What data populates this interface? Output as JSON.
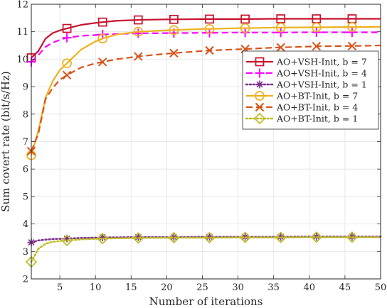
{
  "chart_data": {
    "type": "line",
    "xlabel": "Number of iterations",
    "ylabel": "Sum covert rate (bit/s/Hz)",
    "xlim": [
      1,
      50
    ],
    "ylim": [
      2,
      12
    ],
    "xticks": [
      5,
      10,
      15,
      20,
      25,
      30,
      35,
      40,
      45,
      50
    ],
    "yticks": [
      2,
      3,
      4,
      5,
      6,
      7,
      8,
      9,
      10,
      11,
      12
    ],
    "grid": true,
    "legend_position": "right, slightly above center",
    "x": [
      1,
      2,
      3,
      4,
      5,
      6,
      8,
      10,
      11,
      13,
      16,
      20,
      21,
      25,
      26,
      30,
      31,
      35,
      36,
      40,
      41,
      45,
      46,
      50
    ],
    "series": [
      {
        "name": "AO+VSH-Init, b = 7",
        "color": "#c8102e",
        "dash": "solid",
        "marker": "square",
        "values": [
          10.05,
          10.3,
          10.75,
          10.95,
          11.05,
          11.12,
          11.25,
          11.32,
          11.35,
          11.4,
          11.43,
          11.45,
          11.45,
          11.46,
          11.46,
          11.46,
          11.46,
          11.47,
          11.47,
          11.47,
          11.47,
          11.47,
          11.47,
          11.47
        ]
      },
      {
        "name": "AO+VSH-Init, b = 4",
        "color": "#ff00ff",
        "dash": "dashed",
        "marker": "plus",
        "values": [
          9.9,
          10.15,
          10.45,
          10.6,
          10.7,
          10.78,
          10.85,
          10.88,
          10.9,
          10.92,
          10.94,
          10.95,
          10.95,
          10.96,
          10.96,
          10.97,
          10.97,
          10.97,
          10.97,
          10.98,
          10.98,
          10.98,
          10.98,
          10.98
        ]
      },
      {
        "name": "AO+VSH-Init, b = 1",
        "color": "#7e2f8e",
        "dash": "dotted",
        "marker": "asterisk",
        "values": [
          3.33,
          3.4,
          3.43,
          3.45,
          3.46,
          3.47,
          3.49,
          3.5,
          3.51,
          3.51,
          3.52,
          3.52,
          3.52,
          3.53,
          3.53,
          3.53,
          3.53,
          3.53,
          3.53,
          3.54,
          3.54,
          3.54,
          3.54,
          3.54
        ]
      },
      {
        "name": "AO+BT-Init, b = 7",
        "color": "#edb120",
        "dash": "solid",
        "marker": "circle",
        "values": [
          6.5,
          7.4,
          8.6,
          9.2,
          9.6,
          9.85,
          10.35,
          10.65,
          10.75,
          10.9,
          11.0,
          11.05,
          11.06,
          11.1,
          11.1,
          11.13,
          11.13,
          11.15,
          11.15,
          11.16,
          11.16,
          11.17,
          11.17,
          11.18
        ]
      },
      {
        "name": "AO+BT-Init, b = 4",
        "color": "#d95319",
        "dash": "dashed",
        "marker": "x",
        "values": [
          6.65,
          7.3,
          8.55,
          8.95,
          9.25,
          9.42,
          9.7,
          9.85,
          9.9,
          10.0,
          10.1,
          10.2,
          10.22,
          10.3,
          10.32,
          10.36,
          10.37,
          10.42,
          10.43,
          10.46,
          10.47,
          10.48,
          10.48,
          10.5
        ]
      },
      {
        "name": "AO+BT-Init, b = 1",
        "color": "#bdbd26",
        "dash": "dotted",
        "marker": "diamond",
        "values": [
          2.62,
          3.1,
          3.28,
          3.35,
          3.38,
          3.4,
          3.44,
          3.46,
          3.47,
          3.48,
          3.49,
          3.5,
          3.5,
          3.5,
          3.5,
          3.51,
          3.51,
          3.51,
          3.51,
          3.52,
          3.52,
          3.52,
          3.52,
          3.52
        ]
      }
    ]
  }
}
